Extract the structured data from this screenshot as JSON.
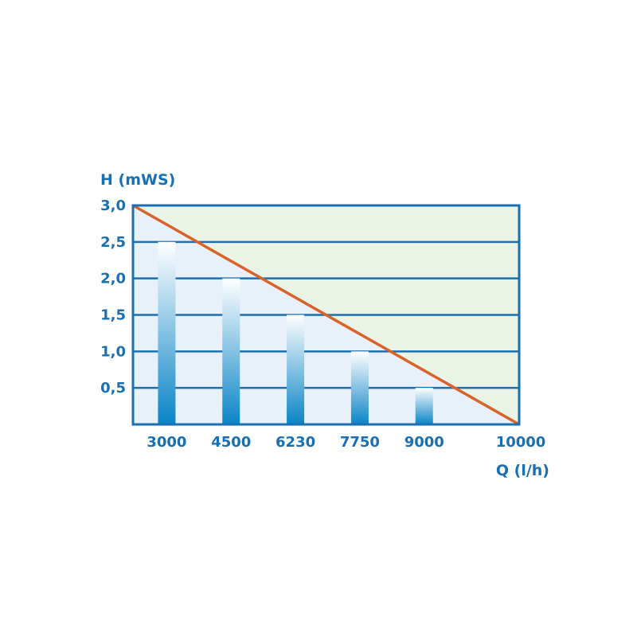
{
  "chart_data": {
    "type": "bar",
    "ylabel": "H (mWS)",
    "xlabel": "Q (l/h)",
    "ylim": [
      0,
      3.0
    ],
    "y_ticks": [
      "0,5",
      "1,0",
      "1,5",
      "2,0",
      "2,5",
      "3,0"
    ],
    "y_tick_values": [
      0.5,
      1.0,
      1.5,
      2.0,
      2.5,
      3.0
    ],
    "categories": [
      "3000",
      "4500",
      "6230",
      "7750",
      "9000",
      "10000"
    ],
    "values": [
      2.5,
      2.0,
      1.5,
      1.0,
      0.5,
      0
    ],
    "line": {
      "x": [
        "0",
        "10000"
      ],
      "y": [
        3.0,
        0
      ],
      "color": "#d9622b"
    },
    "grid": true,
    "colors": {
      "frame": "#1a6fb0",
      "grid": "#1a6fb0",
      "bar_top": "#ffffff",
      "bar_bottom": "#0a84c6",
      "area_above": "#eaf4e6",
      "area_below": "#e8f0fa",
      "text": "#1a6fb0",
      "line": "#d9622b"
    }
  }
}
